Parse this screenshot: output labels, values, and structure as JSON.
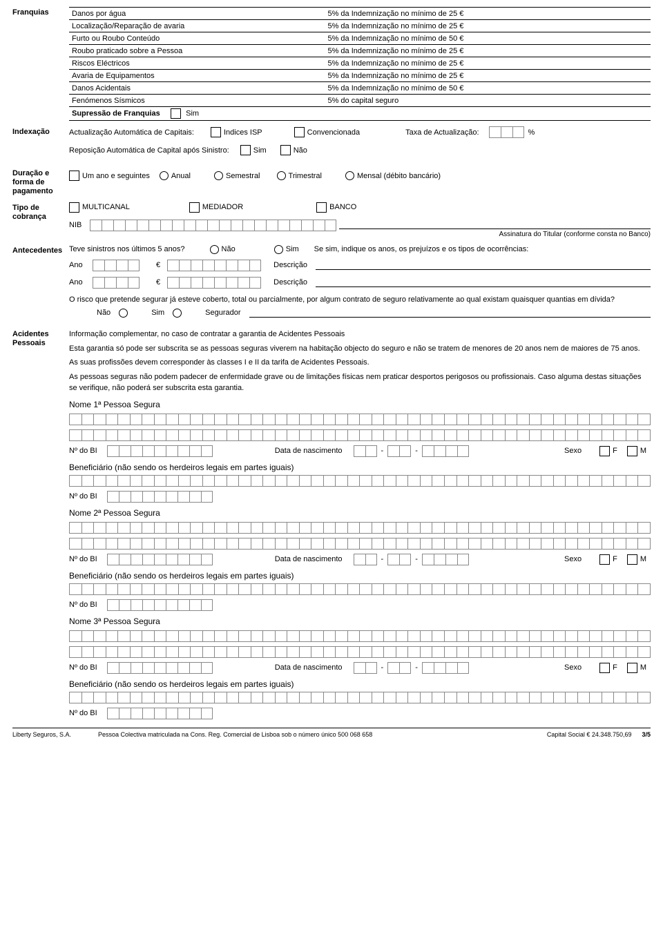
{
  "franquias": {
    "title": "Franquias",
    "rows": [
      {
        "label": "Danos por água",
        "value": "5% da Indemnização no mínimo de 25 €"
      },
      {
        "label": "Localização/Reparação de avaria",
        "value": "5% da Indemnização no mínimo de 25 €"
      },
      {
        "label": "Furto ou Roubo Conteúdo",
        "value": "5% da Indemnização no mínimo de 50 €"
      },
      {
        "label": "Roubo praticado sobre a Pessoa",
        "value": "5% da Indemnização no mínimo de 25 €"
      },
      {
        "label": "Riscos Eléctricos",
        "value": "5% da Indemnização no mínimo de 25 €"
      },
      {
        "label": "Avaria de Equipamentos",
        "value": "5% da Indemnização no mínimo de 25 €"
      },
      {
        "label": "Danos Acidentais",
        "value": "5% da Indemnização no mínimo de 50 €"
      },
      {
        "label": "Fenómenos Sísmicos",
        "value": "5% do capital seguro"
      }
    ],
    "suppress_label": "Supressão de Franquias",
    "suppress_opt": "Sim"
  },
  "indexacao": {
    "title": "Indexação",
    "auto_cap": "Actualização Automática de Capitais:",
    "isp": "Indices ISP",
    "conv": "Convencionada",
    "taxa": "Taxa de Actualização:",
    "pct": "%",
    "repos": "Reposição Automática de Capital após Sinistro:",
    "sim": "Sim",
    "nao": "Não"
  },
  "duracao": {
    "title": "Duração e forma de pagamento",
    "um_ano": "Um ano e seguintes",
    "anual": "Anual",
    "semestral": "Semestral",
    "trimestral": "Trimestral",
    "mensal": "Mensal (débito bancário)"
  },
  "cobranca": {
    "title": "Tipo de cobrança",
    "multi": "MULTICANAL",
    "mediador": "MEDIADOR",
    "banco": "BANCO",
    "nib": "NIB",
    "sig": "Assinatura do Titular (conforme consta no Banco)"
  },
  "antecedentes": {
    "title": "Antecedentes",
    "q1": "Teve sinistros nos últimos 5 anos?",
    "nao": "Não",
    "sim": "Sim",
    "hint": "Se sim, indique os anos, os prejuízos e os tipos de ocorrências:",
    "ano": "Ano",
    "eur": "€",
    "descr": "Descrição",
    "q2": "O risco que pretende segurar já esteve coberto, total ou parcialmente, por algum contrato de seguro relativamente ao qual existam quaisquer quantias em dívida?",
    "segurador": "Segurador"
  },
  "acidentes": {
    "title": "Acidentes Pessoais",
    "l1": "Informação complementar, no caso de contratar a garantia de Acidentes Pessoais",
    "l2": "Esta garantia só pode ser subscrita se as pessoas seguras viverem na habitação objecto do seguro e não se tratem de menores de 20 anos nem de maiores de 75 anos.",
    "l3": "As suas profissões devem corresponder às classes I e II da tarifa de Acidentes Pessoais.",
    "l4": "As pessoas seguras não podem padecer de enfermidade grave ou de limitações físicas nem praticar desportos perigosos ou profissionais. Caso alguma destas situações se verifique, não poderá ser subscrita esta garantia.",
    "p1": "Nome 1ª Pessoa Segura",
    "p2": "Nome 2ª Pessoa Segura",
    "p3": "Nome 3ª Pessoa Segura",
    "bi": "Nº do BI",
    "dob": "Data de nascimento",
    "sexo": "Sexo",
    "f": "F",
    "m": "M",
    "benef": "Beneficiário (não sendo os herdeiros legais em partes iguais)"
  },
  "footer": {
    "company": "Liberty Seguros, S.A.",
    "reg": "Pessoa Colectiva matriculada na Cons. Reg. Comercial de Lisboa sob o número único 500 068 658",
    "capital": "Capital Social € 24.348.750,69",
    "page": "3/5"
  }
}
